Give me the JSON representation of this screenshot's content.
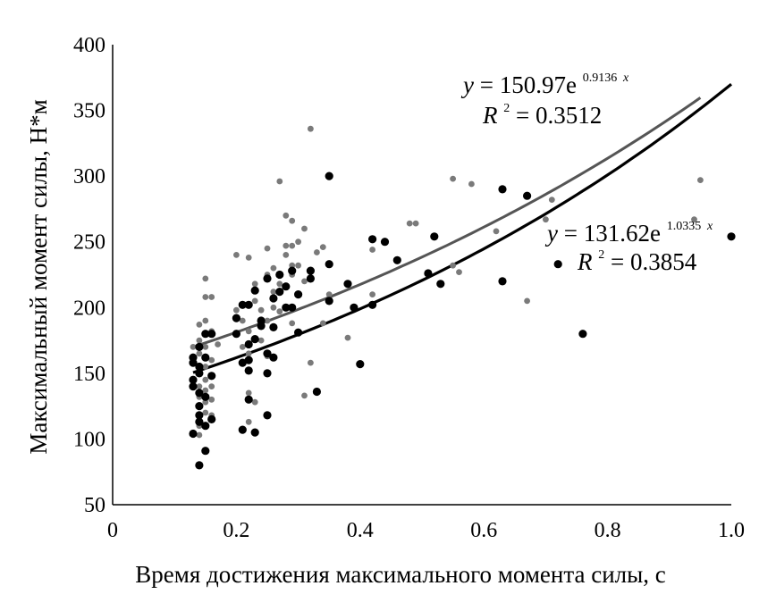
{
  "chart_data": {
    "type": "scatter",
    "title": "",
    "xlabel": "Время достижения максимального момента силы, с",
    "ylabel": "Максимальный момент силы, Н*м",
    "xlim": [
      0,
      1.0
    ],
    "ylim": [
      50,
      400
    ],
    "x_ticks": [
      "0",
      "0.2",
      "0.4",
      "0.6",
      "0.8",
      "1.0"
    ],
    "x_tick_values": [
      0,
      0.2,
      0.4,
      0.6,
      0.8,
      1.0
    ],
    "y_ticks": [
      "50",
      "100",
      "150",
      "200",
      "250",
      "300",
      "350",
      "400"
    ],
    "y_tick_values": [
      50,
      100,
      150,
      200,
      250,
      300,
      350,
      400
    ],
    "grid": false,
    "series": [
      {
        "color": "#7a7a7a",
        "trend_color": "#555555",
        "marker_radius_hint": "small",
        "points": [
          [
            0.13,
            170
          ],
          [
            0.13,
            160
          ],
          [
            0.14,
            187
          ],
          [
            0.14,
            175
          ],
          [
            0.14,
            165
          ],
          [
            0.14,
            150
          ],
          [
            0.14,
            140
          ],
          [
            0.14,
            132
          ],
          [
            0.14,
            125
          ],
          [
            0.14,
            118
          ],
          [
            0.14,
            110
          ],
          [
            0.14,
            103
          ],
          [
            0.15,
            222
          ],
          [
            0.15,
            208
          ],
          [
            0.15,
            190
          ],
          [
            0.15,
            180
          ],
          [
            0.15,
            170
          ],
          [
            0.15,
            155
          ],
          [
            0.15,
            145
          ],
          [
            0.15,
            137
          ],
          [
            0.15,
            128
          ],
          [
            0.15,
            120
          ],
          [
            0.16,
            208
          ],
          [
            0.16,
            182
          ],
          [
            0.16,
            160
          ],
          [
            0.16,
            148
          ],
          [
            0.16,
            140
          ],
          [
            0.16,
            130
          ],
          [
            0.16,
            118
          ],
          [
            0.17,
            172
          ],
          [
            0.2,
            240
          ],
          [
            0.2,
            198
          ],
          [
            0.21,
            190
          ],
          [
            0.21,
            170
          ],
          [
            0.21,
            158
          ],
          [
            0.22,
            238
          ],
          [
            0.22,
            182
          ],
          [
            0.22,
            165
          ],
          [
            0.22,
            135
          ],
          [
            0.22,
            113
          ],
          [
            0.23,
            218
          ],
          [
            0.23,
            205
          ],
          [
            0.23,
            128
          ],
          [
            0.24,
            198
          ],
          [
            0.24,
            175
          ],
          [
            0.25,
            245
          ],
          [
            0.25,
            225
          ],
          [
            0.25,
            190
          ],
          [
            0.25,
            163
          ],
          [
            0.26,
            230
          ],
          [
            0.26,
            212
          ],
          [
            0.26,
            200
          ],
          [
            0.27,
            296
          ],
          [
            0.27,
            218
          ],
          [
            0.27,
            197
          ],
          [
            0.28,
            270
          ],
          [
            0.28,
            247
          ],
          [
            0.28,
            240
          ],
          [
            0.29,
            266
          ],
          [
            0.29,
            247
          ],
          [
            0.29,
            232
          ],
          [
            0.29,
            225
          ],
          [
            0.29,
            188
          ],
          [
            0.3,
            250
          ],
          [
            0.3,
            232
          ],
          [
            0.31,
            260
          ],
          [
            0.31,
            220
          ],
          [
            0.31,
            133
          ],
          [
            0.32,
            336
          ],
          [
            0.32,
            158
          ],
          [
            0.33,
            242
          ],
          [
            0.34,
            246
          ],
          [
            0.34,
            188
          ],
          [
            0.35,
            210
          ],
          [
            0.38,
            177
          ],
          [
            0.42,
            210
          ],
          [
            0.42,
            244
          ],
          [
            0.48,
            264
          ],
          [
            0.49,
            264
          ],
          [
            0.55,
            298
          ],
          [
            0.55,
            232
          ],
          [
            0.56,
            227
          ],
          [
            0.58,
            294
          ],
          [
            0.62,
            258
          ],
          [
            0.67,
            205
          ],
          [
            0.7,
            267
          ],
          [
            0.71,
            282
          ],
          [
            0.94,
            267
          ],
          [
            0.95,
            297
          ]
        ],
        "trend": {
          "a": 150.97,
          "b": 0.9136,
          "x_range": [
            0.13,
            0.95
          ]
        }
      },
      {
        "color": "#000000",
        "trend_color": "#000000",
        "marker_radius_hint": "large",
        "points": [
          [
            0.13,
            162
          ],
          [
            0.13,
            158
          ],
          [
            0.13,
            145
          ],
          [
            0.13,
            140
          ],
          [
            0.13,
            104
          ],
          [
            0.14,
            80
          ],
          [
            0.14,
            170
          ],
          [
            0.14,
            155
          ],
          [
            0.14,
            150
          ],
          [
            0.14,
            135
          ],
          [
            0.14,
            125
          ],
          [
            0.14,
            118
          ],
          [
            0.14,
            113
          ],
          [
            0.15,
            180
          ],
          [
            0.15,
            162
          ],
          [
            0.15,
            132
          ],
          [
            0.15,
            110
          ],
          [
            0.15,
            91
          ],
          [
            0.16,
            180
          ],
          [
            0.16,
            148
          ],
          [
            0.16,
            115
          ],
          [
            0.2,
            192
          ],
          [
            0.2,
            180
          ],
          [
            0.21,
            202
          ],
          [
            0.21,
            158
          ],
          [
            0.21,
            107
          ],
          [
            0.22,
            202
          ],
          [
            0.22,
            172
          ],
          [
            0.22,
            160
          ],
          [
            0.22,
            152
          ],
          [
            0.22,
            130
          ],
          [
            0.23,
            213
          ],
          [
            0.23,
            176
          ],
          [
            0.23,
            105
          ],
          [
            0.24,
            190
          ],
          [
            0.24,
            186
          ],
          [
            0.25,
            222
          ],
          [
            0.25,
            165
          ],
          [
            0.25,
            150
          ],
          [
            0.25,
            118
          ],
          [
            0.26,
            207
          ],
          [
            0.26,
            185
          ],
          [
            0.26,
            162
          ],
          [
            0.27,
            225
          ],
          [
            0.27,
            212
          ],
          [
            0.28,
            216
          ],
          [
            0.28,
            200
          ],
          [
            0.29,
            228
          ],
          [
            0.29,
            200
          ],
          [
            0.3,
            210
          ],
          [
            0.3,
            181
          ],
          [
            0.32,
            228
          ],
          [
            0.32,
            222
          ],
          [
            0.33,
            136
          ],
          [
            0.35,
            300
          ],
          [
            0.35,
            233
          ],
          [
            0.35,
            205
          ],
          [
            0.38,
            218
          ],
          [
            0.39,
            200
          ],
          [
            0.4,
            157
          ],
          [
            0.42,
            252
          ],
          [
            0.42,
            202
          ],
          [
            0.44,
            250
          ],
          [
            0.46,
            236
          ],
          [
            0.51,
            226
          ],
          [
            0.52,
            254
          ],
          [
            0.53,
            218
          ],
          [
            0.63,
            290
          ],
          [
            0.63,
            220
          ],
          [
            0.67,
            285
          ],
          [
            0.72,
            233
          ],
          [
            0.76,
            180
          ],
          [
            1.0,
            254
          ]
        ],
        "trend": {
          "a": 131.62,
          "b": 1.0335,
          "x_range": [
            0.13,
            1.0
          ]
        }
      }
    ],
    "annotations": {
      "upper": {
        "lhs": "y",
        "coef": "150.97e",
        "exp": "0.9136",
        "var": "x",
        "r_label": "R",
        "r_exp": "2",
        "r_value": "= 0.3512"
      },
      "lower": {
        "lhs": "y",
        "coef": "131.62e",
        "exp": "1.0335",
        "var": "x",
        "r_label": "R",
        "r_exp": "2",
        "r_value": "= 0.3854"
      }
    }
  }
}
